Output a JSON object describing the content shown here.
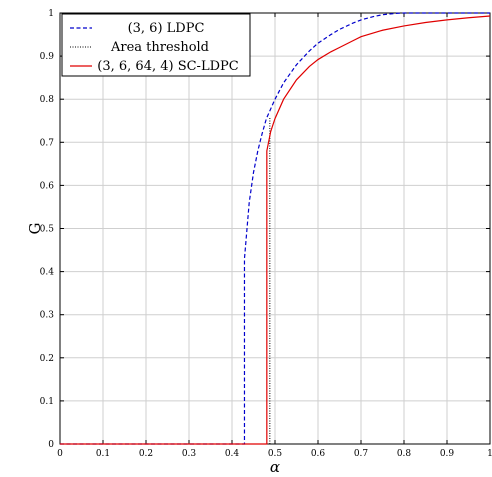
{
  "chart_data": {
    "type": "line",
    "xlabel": "α",
    "ylabel": "G",
    "xlim": [
      0,
      1
    ],
    "ylim": [
      0,
      1
    ],
    "grid": true,
    "legend_position": "top-left",
    "x_ticks": [
      0,
      0.1,
      0.2,
      0.3,
      0.4,
      0.5,
      0.6,
      0.7,
      0.8,
      0.9,
      1
    ],
    "x_tick_labels": [
      "0",
      "0.1",
      "0.2",
      "0.3",
      "0.4",
      "0.5",
      "0.6",
      "0.7",
      "0.8",
      "0.9",
      "1"
    ],
    "y_ticks": [
      0,
      0.1,
      0.2,
      0.3,
      0.4,
      0.5,
      0.6,
      0.7,
      0.8,
      0.9,
      1
    ],
    "y_tick_labels": [
      "0",
      "0.1",
      "0.2",
      "0.3",
      "0.4",
      "0.5",
      "0.6",
      "0.7",
      "0.8",
      "0.9",
      "1"
    ],
    "series": [
      {
        "name": "(3, 6) LDPC",
        "color": "#0000cc",
        "style": "dashed",
        "x": [
          0,
          0.429,
          0.429,
          0.44,
          0.45,
          0.46,
          0.47,
          0.48,
          0.5,
          0.52,
          0.55,
          0.58,
          0.6,
          0.63,
          0.65,
          0.68,
          0.7,
          0.73,
          0.75,
          0.78,
          0.8,
          1.0
        ],
        "y": [
          0,
          0,
          0.43,
          0.56,
          0.63,
          0.68,
          0.72,
          0.755,
          0.8,
          0.838,
          0.88,
          0.912,
          0.93,
          0.95,
          0.962,
          0.976,
          0.984,
          0.992,
          0.996,
          0.999,
          1.0,
          1.0
        ]
      },
      {
        "name": "Area threshold",
        "color": "#000000",
        "style": "dotted",
        "x": [
          0.488,
          0.488
        ],
        "y": [
          0,
          0.76
        ]
      },
      {
        "name": "(3, 6, 64, 4) SC-LDPC",
        "color": "#e00000",
        "style": "solid",
        "x": [
          0,
          0.481,
          0.481,
          0.49,
          0.5,
          0.52,
          0.55,
          0.58,
          0.6,
          0.63,
          0.65,
          0.68,
          0.7,
          0.75,
          0.8,
          0.85,
          0.9,
          0.95,
          1.0
        ],
        "y": [
          0,
          0,
          0.68,
          0.725,
          0.755,
          0.8,
          0.845,
          0.876,
          0.892,
          0.91,
          0.92,
          0.935,
          0.945,
          0.96,
          0.97,
          0.978,
          0.984,
          0.989,
          0.993
        ]
      }
    ]
  }
}
